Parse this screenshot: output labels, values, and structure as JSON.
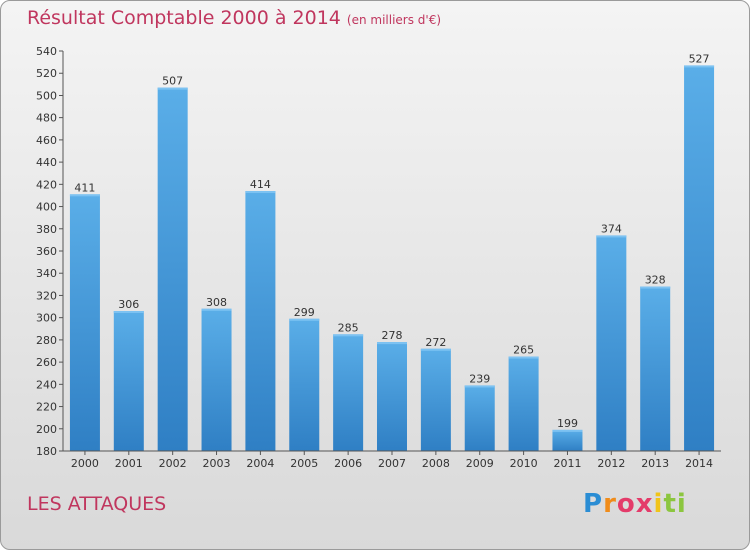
{
  "title": "Résultat Comptable 2000 à 2014",
  "subtitle": "(en milliers d'€)",
  "commune": "LES ATTAQUES",
  "logo_letters": [
    "P",
    "r",
    "o",
    "x",
    "i",
    "ti"
  ],
  "colors": {
    "title": "#c0365e",
    "bar_top": "#5aaee8",
    "bar_bottom": "#2f7fc4"
  },
  "chart_data": {
    "type": "bar",
    "title": "Résultat Comptable 2000 à 2014",
    "subtitle": "(en milliers d'€)",
    "xlabel": "",
    "ylabel": "",
    "categories": [
      "2000",
      "2001",
      "2002",
      "2003",
      "2004",
      "2005",
      "2006",
      "2007",
      "2008",
      "2009",
      "2010",
      "2011",
      "2012",
      "2013",
      "2014"
    ],
    "values": [
      411,
      306,
      507,
      308,
      414,
      299,
      285,
      278,
      272,
      239,
      265,
      199,
      374,
      328,
      527
    ],
    "ylim": [
      180,
      540
    ],
    "yticks": [
      180,
      200,
      220,
      240,
      260,
      280,
      300,
      320,
      340,
      360,
      380,
      400,
      420,
      440,
      460,
      480,
      500,
      520,
      540
    ],
    "grid": false,
    "data_labels": true
  }
}
